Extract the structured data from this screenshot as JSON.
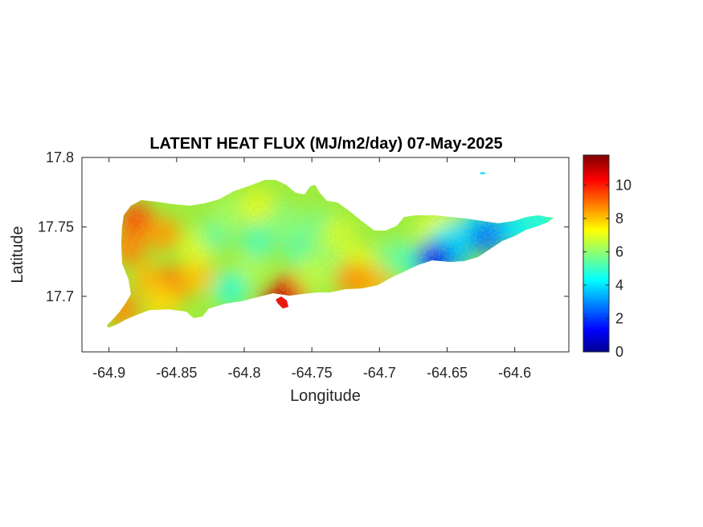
{
  "chart_data": {
    "type": "heatmap",
    "title": "LATENT HEAT FLUX (MJ/m2/day) 07-May-2025",
    "xlabel": "Longitude",
    "ylabel": "Latitude",
    "xlim": [
      -64.92,
      -64.56
    ],
    "ylim": [
      17.66,
      17.8
    ],
    "xticks": [
      -64.9,
      -64.85,
      -64.8,
      -64.75,
      -64.7,
      -64.65,
      -64.6
    ],
    "xtick_labels": [
      "-64.9",
      "-64.85",
      "-64.8",
      "-64.75",
      "-64.7",
      "-64.65",
      "-64.6"
    ],
    "yticks": [
      17.7,
      17.75,
      17.8
    ],
    "ytick_labels": [
      "17.7",
      "17.75",
      "17.8"
    ],
    "colorbar": {
      "colormap": "jet",
      "clim": [
        0,
        11.8
      ],
      "ticks": [
        0,
        2,
        4,
        6,
        8,
        10
      ],
      "tick_labels": [
        "0",
        "2",
        "4",
        "6",
        "8",
        "10"
      ]
    },
    "grid": false,
    "regions": [
      {
        "lon": -64.88,
        "lat": 17.755,
        "value": 9.5
      },
      {
        "lon": -64.885,
        "lat": 17.735,
        "value": 8.8
      },
      {
        "lon": -64.86,
        "lat": 17.745,
        "value": 8.5
      },
      {
        "lon": -64.87,
        "lat": 17.712,
        "value": 8.2
      },
      {
        "lon": -64.85,
        "lat": 17.71,
        "value": 9.0
      },
      {
        "lon": -64.835,
        "lat": 17.715,
        "value": 8.0
      },
      {
        "lon": -64.89,
        "lat": 17.69,
        "value": 8.7
      },
      {
        "lon": -64.86,
        "lat": 17.695,
        "value": 7.8
      },
      {
        "lon": -64.835,
        "lat": 17.735,
        "value": 7.0
      },
      {
        "lon": -64.82,
        "lat": 17.745,
        "value": 5.6
      },
      {
        "lon": -64.81,
        "lat": 17.76,
        "value": 6.3
      },
      {
        "lon": -64.795,
        "lat": 17.72,
        "value": 6.4
      },
      {
        "lon": -64.79,
        "lat": 17.74,
        "value": 5.3
      },
      {
        "lon": -64.79,
        "lat": 17.765,
        "value": 7.0
      },
      {
        "lon": -64.77,
        "lat": 17.755,
        "value": 6.0
      },
      {
        "lon": -64.76,
        "lat": 17.735,
        "value": 5.5
      },
      {
        "lon": -64.745,
        "lat": 17.75,
        "value": 5.8
      },
      {
        "lon": -64.74,
        "lat": 17.725,
        "value": 6.2
      },
      {
        "lon": -64.73,
        "lat": 17.745,
        "value": 6.8
      },
      {
        "lon": -64.715,
        "lat": 17.725,
        "value": 7.0
      },
      {
        "lon": -64.705,
        "lat": 17.71,
        "value": 8.2
      },
      {
        "lon": -64.69,
        "lat": 17.73,
        "value": 5.8
      },
      {
        "lon": -64.675,
        "lat": 17.725,
        "value": 5.2
      },
      {
        "lon": -64.665,
        "lat": 17.745,
        "value": 6.5
      },
      {
        "lon": -64.655,
        "lat": 17.75,
        "value": 7.2
      },
      {
        "lon": -64.65,
        "lat": 17.74,
        "value": 4.5
      },
      {
        "lon": -64.645,
        "lat": 17.73,
        "value": 3.6
      },
      {
        "lon": -64.635,
        "lat": 17.745,
        "value": 4.0
      },
      {
        "lon": -64.625,
        "lat": 17.75,
        "value": 4.2
      },
      {
        "lon": -64.62,
        "lat": 17.743,
        "value": 2.6
      },
      {
        "lon": -64.608,
        "lat": 17.748,
        "value": 3.3
      },
      {
        "lon": -64.595,
        "lat": 17.75,
        "value": 4.3
      },
      {
        "lon": -64.58,
        "lat": 17.755,
        "value": 4.6
      },
      {
        "lon": -64.66,
        "lat": 17.727,
        "value": 1.4
      },
      {
        "lon": -64.765,
        "lat": 17.704,
        "value": 9.8
      },
      {
        "lon": -64.775,
        "lat": 17.697,
        "value": 11.0
      },
      {
        "lon": -64.72,
        "lat": 17.712,
        "value": 8.6
      },
      {
        "lon": -64.81,
        "lat": 17.705,
        "value": 5.0
      },
      {
        "lon": -64.75,
        "lat": 17.715,
        "value": 6.6
      }
    ]
  }
}
